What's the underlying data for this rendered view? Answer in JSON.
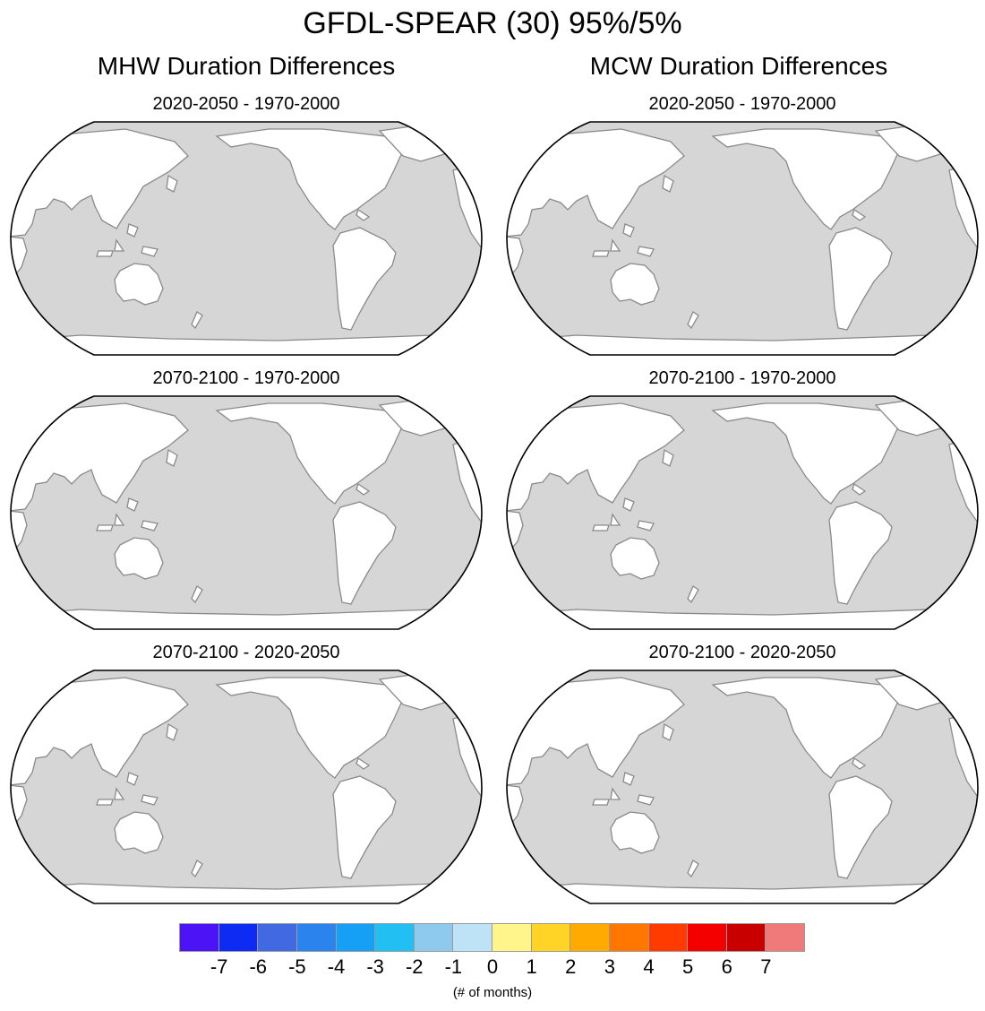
{
  "title": "GFDL-SPEAR (30) 95%/5%",
  "columns": [
    {
      "title": "MHW Duration Differences",
      "panels": [
        "2020-2050 - 1970-2000",
        "2070-2100 - 1970-2000",
        "2070-2100 - 2020-2050"
      ]
    },
    {
      "title": "MCW Duration Differences",
      "panels": [
        "2020-2050 - 1970-2000",
        "2070-2100 - 1970-2000",
        "2070-2100 - 2020-2050"
      ]
    }
  ],
  "colorbar": {
    "labels": [
      "-7",
      "-6",
      "-5",
      "-4",
      "-3",
      "-2",
      "-1",
      "0",
      "1",
      "2",
      "3",
      "4",
      "5",
      "6",
      "7"
    ],
    "colors": [
      "#4b13f5",
      "#0d2bf2",
      "#4169e1",
      "#2b84ee",
      "#15a0f5",
      "#22bff2",
      "#8ec9ee",
      "#bfe3f6",
      "#fff58a",
      "#ffd426",
      "#ffaa00",
      "#ff7700",
      "#ff3b00",
      "#f50000",
      "#c90000",
      "#f07a7a"
    ],
    "unit": "(# of months)"
  },
  "map_colors": {
    "ocean": "#d6d6d6",
    "land": "#ffffff",
    "coast": "#8a8a8a"
  }
}
